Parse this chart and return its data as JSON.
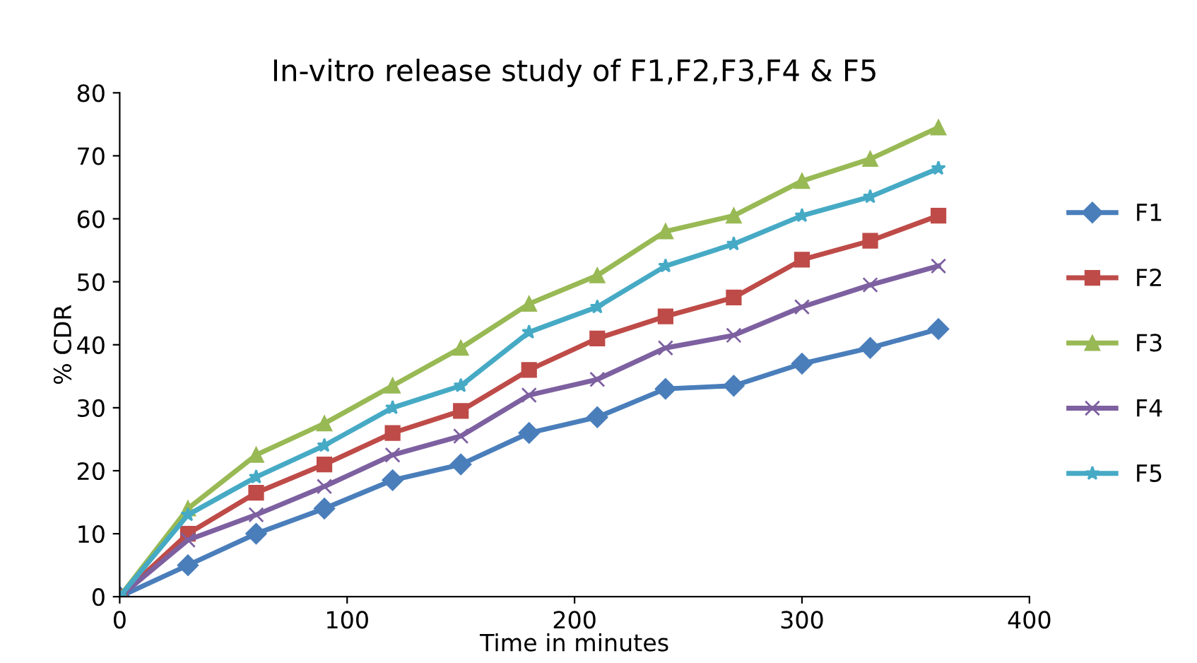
{
  "chart_data": {
    "type": "line",
    "title": "In-vitro release study of F1,F2,F3,F4 & F5",
    "xlabel": "Time in minutes",
    "ylabel": "% CDR",
    "x": [
      0,
      30,
      60,
      90,
      120,
      150,
      180,
      210,
      240,
      270,
      300,
      330,
      360
    ],
    "series": [
      {
        "name": "F1",
        "color": "#4a7ebb",
        "marker": "diamond",
        "values": [
          0,
          5,
          10,
          14,
          18.5,
          21,
          26,
          28.5,
          33,
          33.5,
          37,
          39.5,
          42.5
        ]
      },
      {
        "name": "F2",
        "color": "#be4b48",
        "marker": "square",
        "values": [
          0,
          10,
          16.5,
          21,
          26,
          29.5,
          36,
          41,
          44.5,
          47.5,
          53.5,
          56.5,
          60.5
        ]
      },
      {
        "name": "F3",
        "color": "#98b954",
        "marker": "triangle",
        "values": [
          0,
          14,
          22.5,
          27.5,
          33.5,
          39.5,
          46.5,
          51,
          58,
          60.5,
          66,
          69.5,
          74.5
        ]
      },
      {
        "name": "F4",
        "color": "#7d60a0",
        "marker": "cross",
        "values": [
          0,
          9,
          13,
          17.5,
          22.5,
          25.5,
          32,
          34.5,
          39.5,
          41.5,
          46,
          49.5,
          52.5
        ]
      },
      {
        "name": "F5",
        "color": "#46aac5",
        "marker": "star",
        "values": [
          0,
          13,
          19,
          24,
          30,
          33.5,
          42,
          46,
          52.5,
          56,
          60.5,
          63.5,
          68
        ]
      }
    ],
    "xlim": [
      0,
      400
    ],
    "xticks": [
      0,
      100,
      200,
      300,
      400
    ],
    "ylim": [
      0,
      80
    ],
    "yticks": [
      0,
      10,
      20,
      30,
      40,
      50,
      60,
      70,
      80
    ],
    "grid": false,
    "legend": "right",
    "line_style": "solid"
  }
}
